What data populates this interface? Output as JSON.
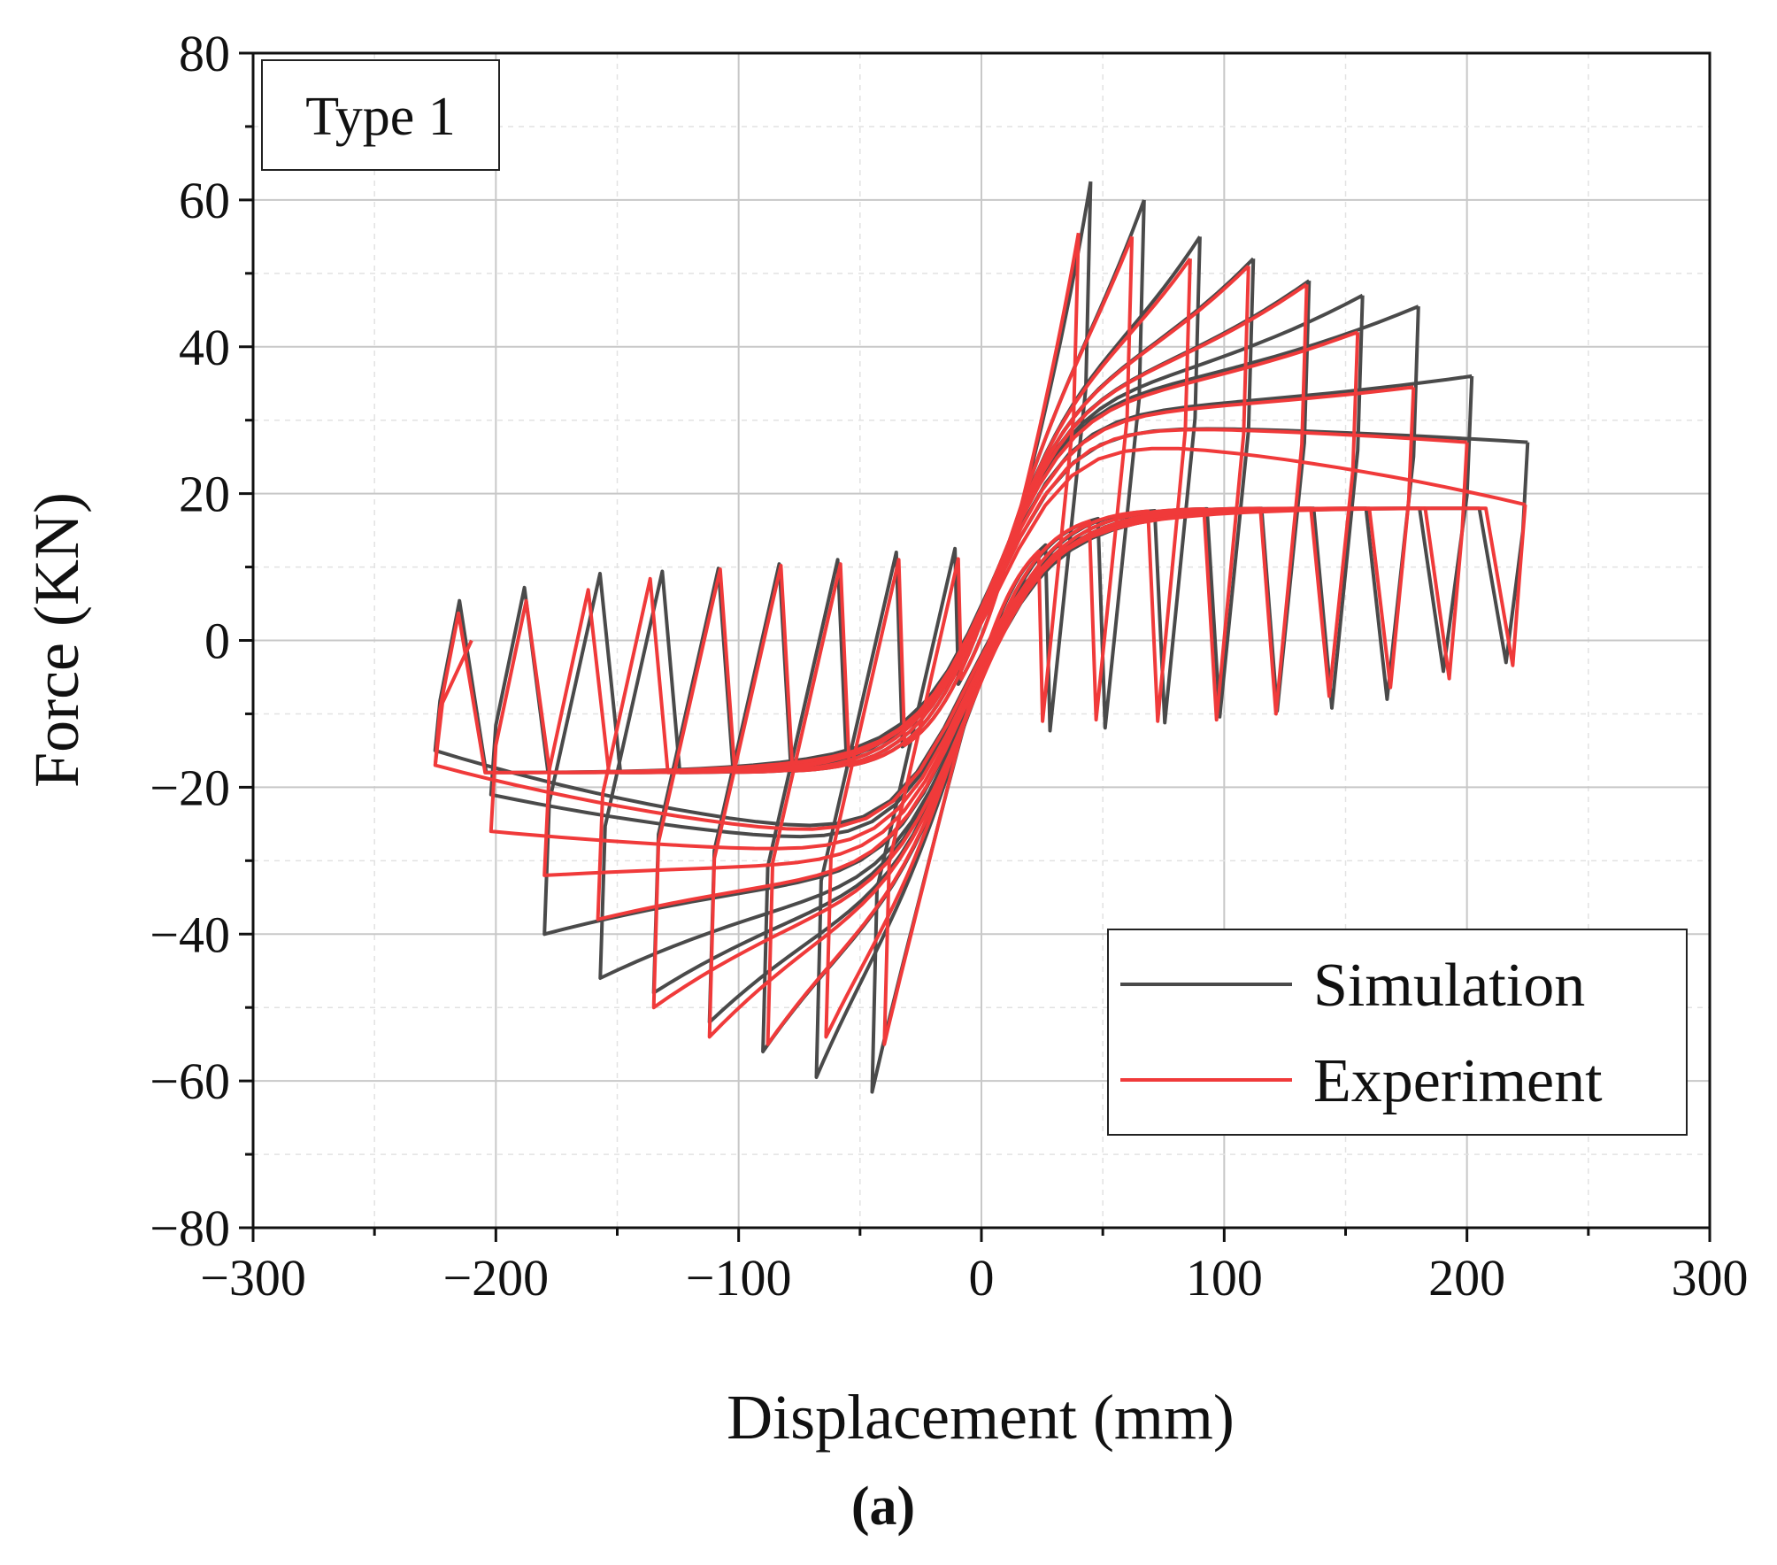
{
  "chart_data": {
    "type": "line",
    "title": "",
    "panel_label": "Type 1",
    "caption": "(a)",
    "xlabel": "Displacement (mm)",
    "ylabel": "Force (KN)",
    "xlim": [
      -300,
      300
    ],
    "ylim": [
      -80,
      80
    ],
    "xticks": [
      -300,
      -200,
      -100,
      0,
      100,
      200,
      300
    ],
    "yticks": [
      -80,
      -60,
      -40,
      -20,
      0,
      20,
      40,
      60,
      80
    ],
    "xtick_labels": [
      "−300",
      "−200",
      "−100",
      "0",
      "100",
      "200",
      "300"
    ],
    "ytick_labels": [
      "−80",
      "−60",
      "−40",
      "−20",
      "0",
      "20",
      "40",
      "60",
      "80"
    ],
    "grid": true,
    "legend_position": "bottom-right",
    "series": [
      {
        "name": "Simulation",
        "color": "#4a4a4a",
        "cycles": [
          {
            "d_max": 45,
            "f_max": 62.5,
            "d_min": -45,
            "f_min": -61.5
          },
          {
            "d_max": 67,
            "f_max": 60,
            "d_min": -68,
            "f_min": -59.5
          },
          {
            "d_max": 90,
            "f_max": 55,
            "d_min": -90,
            "f_min": -56
          },
          {
            "d_max": 112,
            "f_max": 52,
            "d_min": -112,
            "f_min": -52
          },
          {
            "d_max": 135,
            "f_max": 49,
            "d_min": -135,
            "f_min": -48
          },
          {
            "d_max": 157,
            "f_max": 47,
            "d_min": -157,
            "f_min": -46
          },
          {
            "d_max": 180,
            "f_max": 45.5,
            "d_min": -180,
            "f_min": -40
          },
          {
            "d_max": 202,
            "f_max": 36,
            "d_min": -202,
            "f_min": -21
          },
          {
            "d_max": 225,
            "f_max": 27,
            "d_min": -225,
            "f_min": -15
          }
        ]
      },
      {
        "name": "Experiment",
        "color": "#f03a3a",
        "cycles": [
          {
            "d_max": 40,
            "f_max": 55.5,
            "d_min": -40,
            "f_min": -55
          },
          {
            "d_max": 62,
            "f_max": 55,
            "d_min": -64,
            "f_min": -54
          },
          {
            "d_max": 86,
            "f_max": 52,
            "d_min": -88,
            "f_min": -55
          },
          {
            "d_max": 110,
            "f_max": 51,
            "d_min": -112,
            "f_min": -54
          },
          {
            "d_max": 134,
            "f_max": 48.5,
            "d_min": -135,
            "f_min": -50
          },
          {
            "d_max": 155,
            "f_max": 42,
            "d_min": -158,
            "f_min": -38
          },
          {
            "d_max": 178,
            "f_max": 34.5,
            "d_min": -180,
            "f_min": -32
          },
          {
            "d_max": 200,
            "f_max": 27,
            "d_min": -202,
            "f_min": -26
          },
          {
            "d_max": 224,
            "f_max": 18.5,
            "d_min": -225,
            "f_min": -17
          }
        ],
        "final_point": {
          "d": -210,
          "f": 0
        }
      }
    ]
  }
}
